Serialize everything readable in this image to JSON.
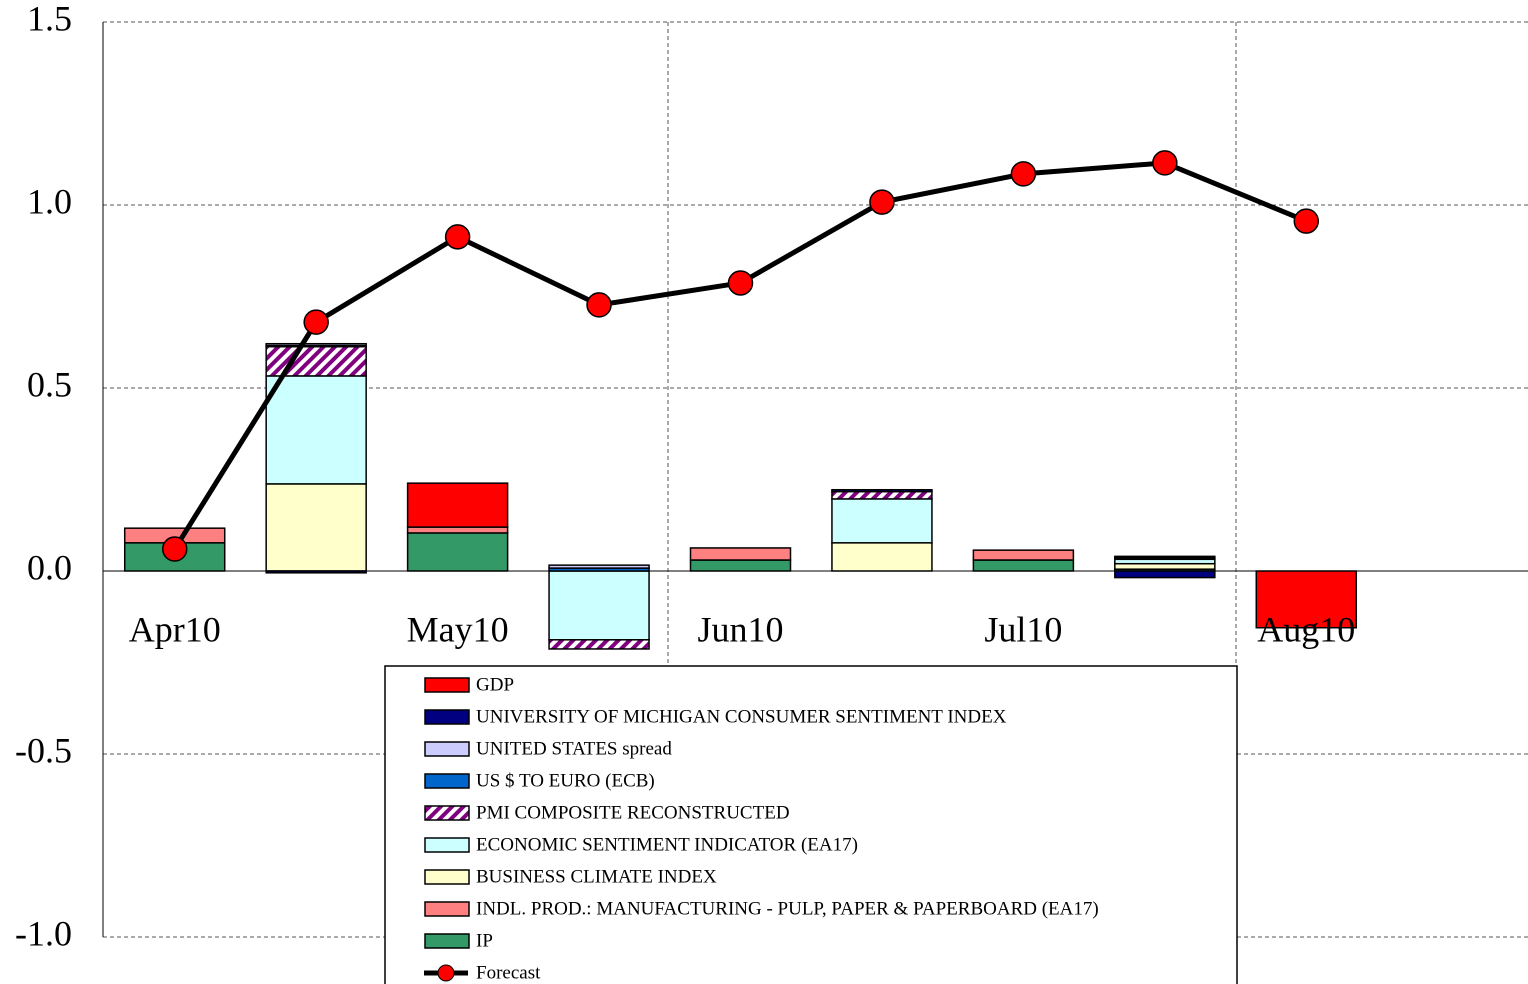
{
  "chart_data": {
    "type": "bar",
    "categories": [
      "Apr10",
      null,
      "May10",
      null,
      "Jun10",
      null,
      "Jul10",
      null,
      "Aug10"
    ],
    "ylim": [
      -1.0,
      1.5
    ],
    "yticks": [
      {
        "value": -1.0,
        "label": "-1.0"
      },
      {
        "value": -0.5,
        "label": "-0.5"
      },
      {
        "value": 0,
        "label": "0.0"
      },
      {
        "value": 0.5,
        "label": "0.5"
      },
      {
        "value": 1.0,
        "label": "1.0"
      },
      {
        "value": 1.5,
        "label": "1.5"
      }
    ],
    "grid": true,
    "series": [
      {
        "name": "IP",
        "color": "#339966",
        "values": [
          0.077,
          0,
          0.104,
          0,
          0.03,
          0,
          0.03,
          0.005,
          0
        ]
      },
      {
        "name": "INDL. PROD.: MANUFACTURING - PULP, PAPER & PAPERBOARD (EA17)",
        "color": "#ff8080",
        "values": [
          0.04,
          0,
          0.016,
          0,
          0.033,
          0,
          0.027,
          0,
          0
        ]
      },
      {
        "name": "BUSINESS CLIMATE INDEX",
        "color": "#ffffcc",
        "values": [
          0,
          0.238,
          0,
          0,
          0,
          0.077,
          0,
          0.015,
          0
        ]
      },
      {
        "name": "ECONOMIC SENTIMENT INDICATOR (EA17)",
        "color": "#ccffff",
        "values": [
          0,
          0.295,
          0,
          -0.188,
          0,
          0.12,
          0,
          0.012,
          0
        ]
      },
      {
        "name": "PMI COMPOSITE RECONSTRUCTED",
        "color": "#800080",
        "hatch": true,
        "values": [
          0,
          0.08,
          0,
          -0.025,
          0,
          0.02,
          0,
          0,
          0
        ]
      },
      {
        "name": "US $ TO EURO (ECB)",
        "color": "#0066cc",
        "values": [
          0,
          0.003,
          0,
          0.008,
          0,
          0,
          0,
          0.004,
          0
        ]
      },
      {
        "name": "UNITED STATES spread",
        "color": "#ccccff",
        "values": [
          0,
          0.005,
          0,
          0.008,
          0,
          0,
          0,
          0.004,
          0
        ]
      },
      {
        "name": "UNIVERSITY OF MICHIGAN CONSUMER SENTIMENT INDEX",
        "color": "#000080",
        "values": [
          0,
          -0.005,
          0,
          0,
          0,
          0.005,
          0,
          -0.018,
          0
        ]
      },
      {
        "name": "GDP",
        "color": "#ff0000",
        "values": [
          0,
          0,
          0.12,
          0,
          0,
          0,
          0,
          0,
          -0.155
        ]
      },
      {
        "name": "Forecast",
        "type": "line",
        "color": "#000000",
        "marker_color": "#ff0000",
        "values": [
          0.06,
          0.68,
          0.913,
          0.727,
          0.787,
          1.008,
          1.085,
          1.115,
          0.956
        ]
      }
    ]
  }
}
